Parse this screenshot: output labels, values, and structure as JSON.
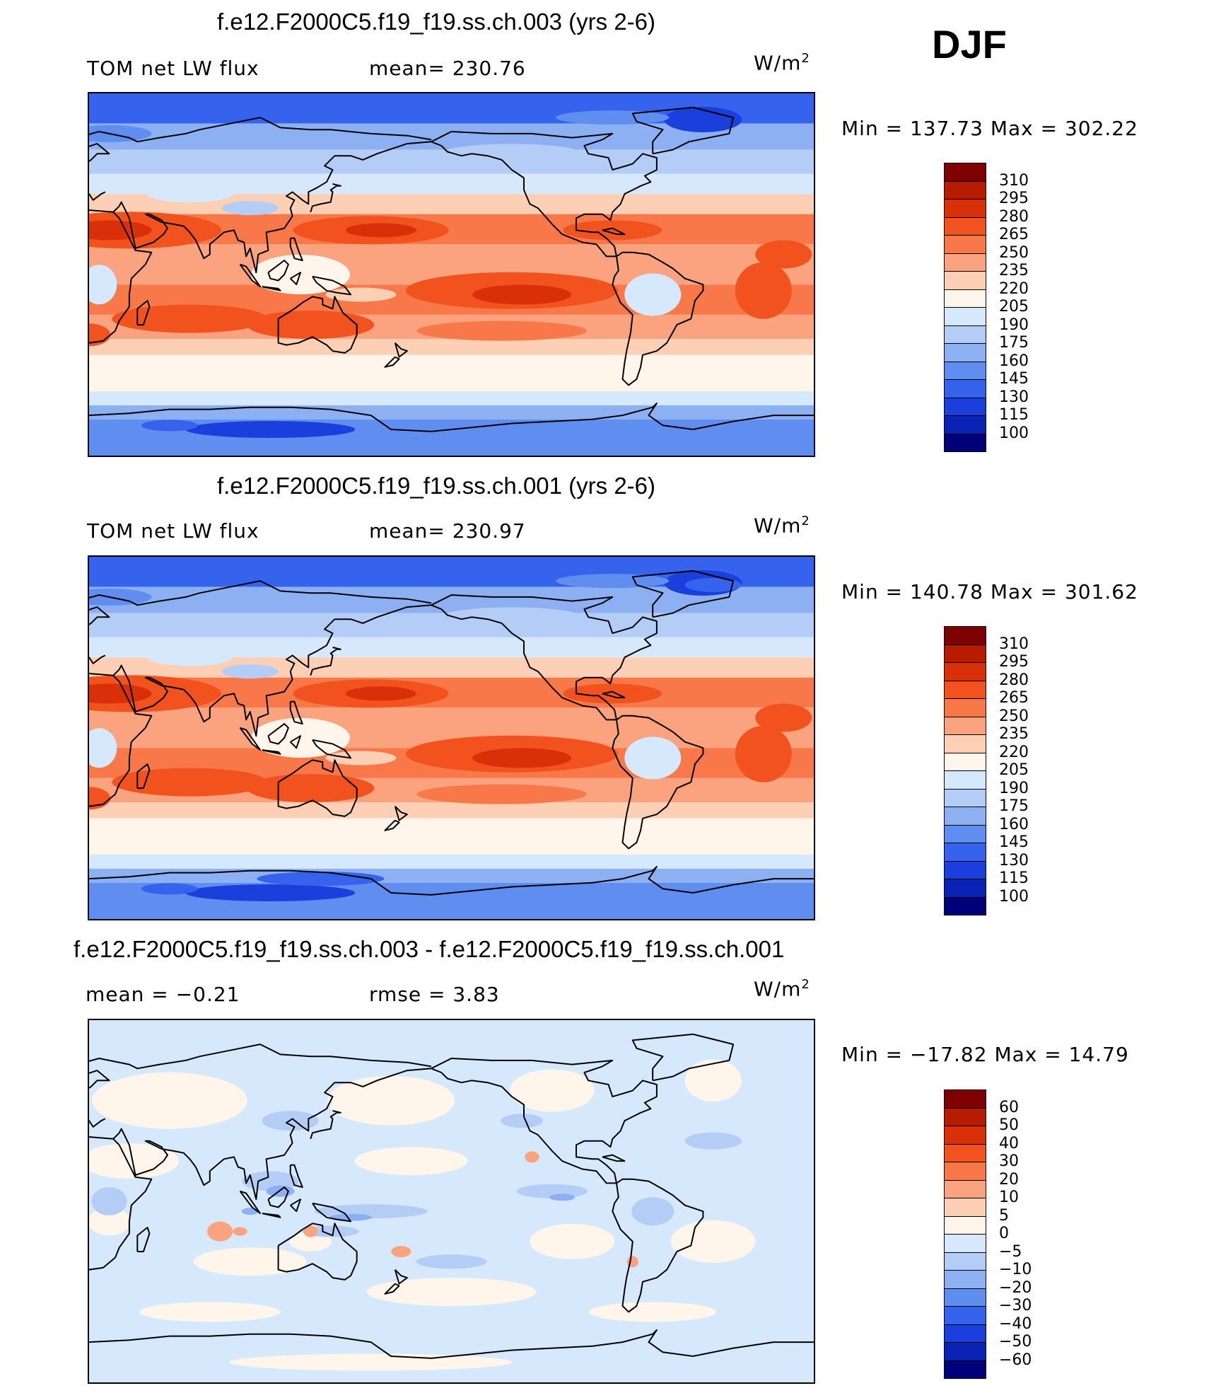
{
  "season": "DJF",
  "panels": [
    {
      "title": "f.e12.F2000C5.f19_f19.ss.ch.003 (yrs 2-6)",
      "left_label": "TOM  net  LW  flux",
      "center_label": "mean=  230.76",
      "units_base": "W/m",
      "units_exp": "2",
      "minmax": "Min  =  137.73  Max  =  302.22",
      "kind": "abs",
      "colorbar": {
        "labels": [
          "310",
          "295",
          "280",
          "265",
          "250",
          "235",
          "220",
          "205",
          "190",
          "175",
          "160",
          "145",
          "130",
          "115",
          "100"
        ],
        "colors": [
          "#7f0000",
          "#b71c00",
          "#d9300a",
          "#f2521e",
          "#f8784a",
          "#fba27e",
          "#fdd0b5",
          "#fff5eb",
          "#d6e8fb",
          "#b3cdf6",
          "#8cb0f2",
          "#5f8df0",
          "#3663ee",
          "#1a3fdd",
          "#0a23b5",
          "#00007a"
        ]
      }
    },
    {
      "title": "f.e12.F2000C5.f19_f19.ss.ch.001 (yrs 2-6)",
      "left_label": "TOM  net  LW  flux",
      "center_label": "mean=  230.97",
      "units_base": "W/m",
      "units_exp": "2",
      "minmax": "Min  =  140.78  Max  =  301.62",
      "kind": "abs",
      "colorbar": {
        "labels": [
          "310",
          "295",
          "280",
          "265",
          "250",
          "235",
          "220",
          "205",
          "190",
          "175",
          "160",
          "145",
          "130",
          "115",
          "100"
        ],
        "colors": [
          "#7f0000",
          "#b71c00",
          "#d9300a",
          "#f2521e",
          "#f8784a",
          "#fba27e",
          "#fdd0b5",
          "#fff5eb",
          "#d6e8fb",
          "#b3cdf6",
          "#8cb0f2",
          "#5f8df0",
          "#3663ee",
          "#1a3fdd",
          "#0a23b5",
          "#00007a"
        ]
      }
    },
    {
      "title": "f.e12.F2000C5.f19_f19.ss.ch.003 - f.e12.F2000C5.f19_f19.ss.ch.001",
      "left_label": "mean  =    −0.21",
      "center_label": "rmse  =     3.83",
      "units_base": "W/m",
      "units_exp": "2",
      "minmax": "Min  =  −17.82  Max  =    14.79",
      "kind": "diff",
      "colorbar": {
        "labels": [
          "60",
          "50",
          "40",
          "30",
          "20",
          "10",
          "5",
          "0",
          "−5",
          "−10",
          "−20",
          "−30",
          "−40",
          "−50",
          "−60"
        ],
        "colors": [
          "#7f0000",
          "#b71c00",
          "#d9300a",
          "#f2521e",
          "#f8784a",
          "#fba27e",
          "#fdd0b5",
          "#fff5eb",
          "#d6e8fb",
          "#b3cdf6",
          "#8cb0f2",
          "#5f8df0",
          "#3663ee",
          "#1a3fdd",
          "#0a23b5",
          "#00007a"
        ]
      }
    }
  ]
}
